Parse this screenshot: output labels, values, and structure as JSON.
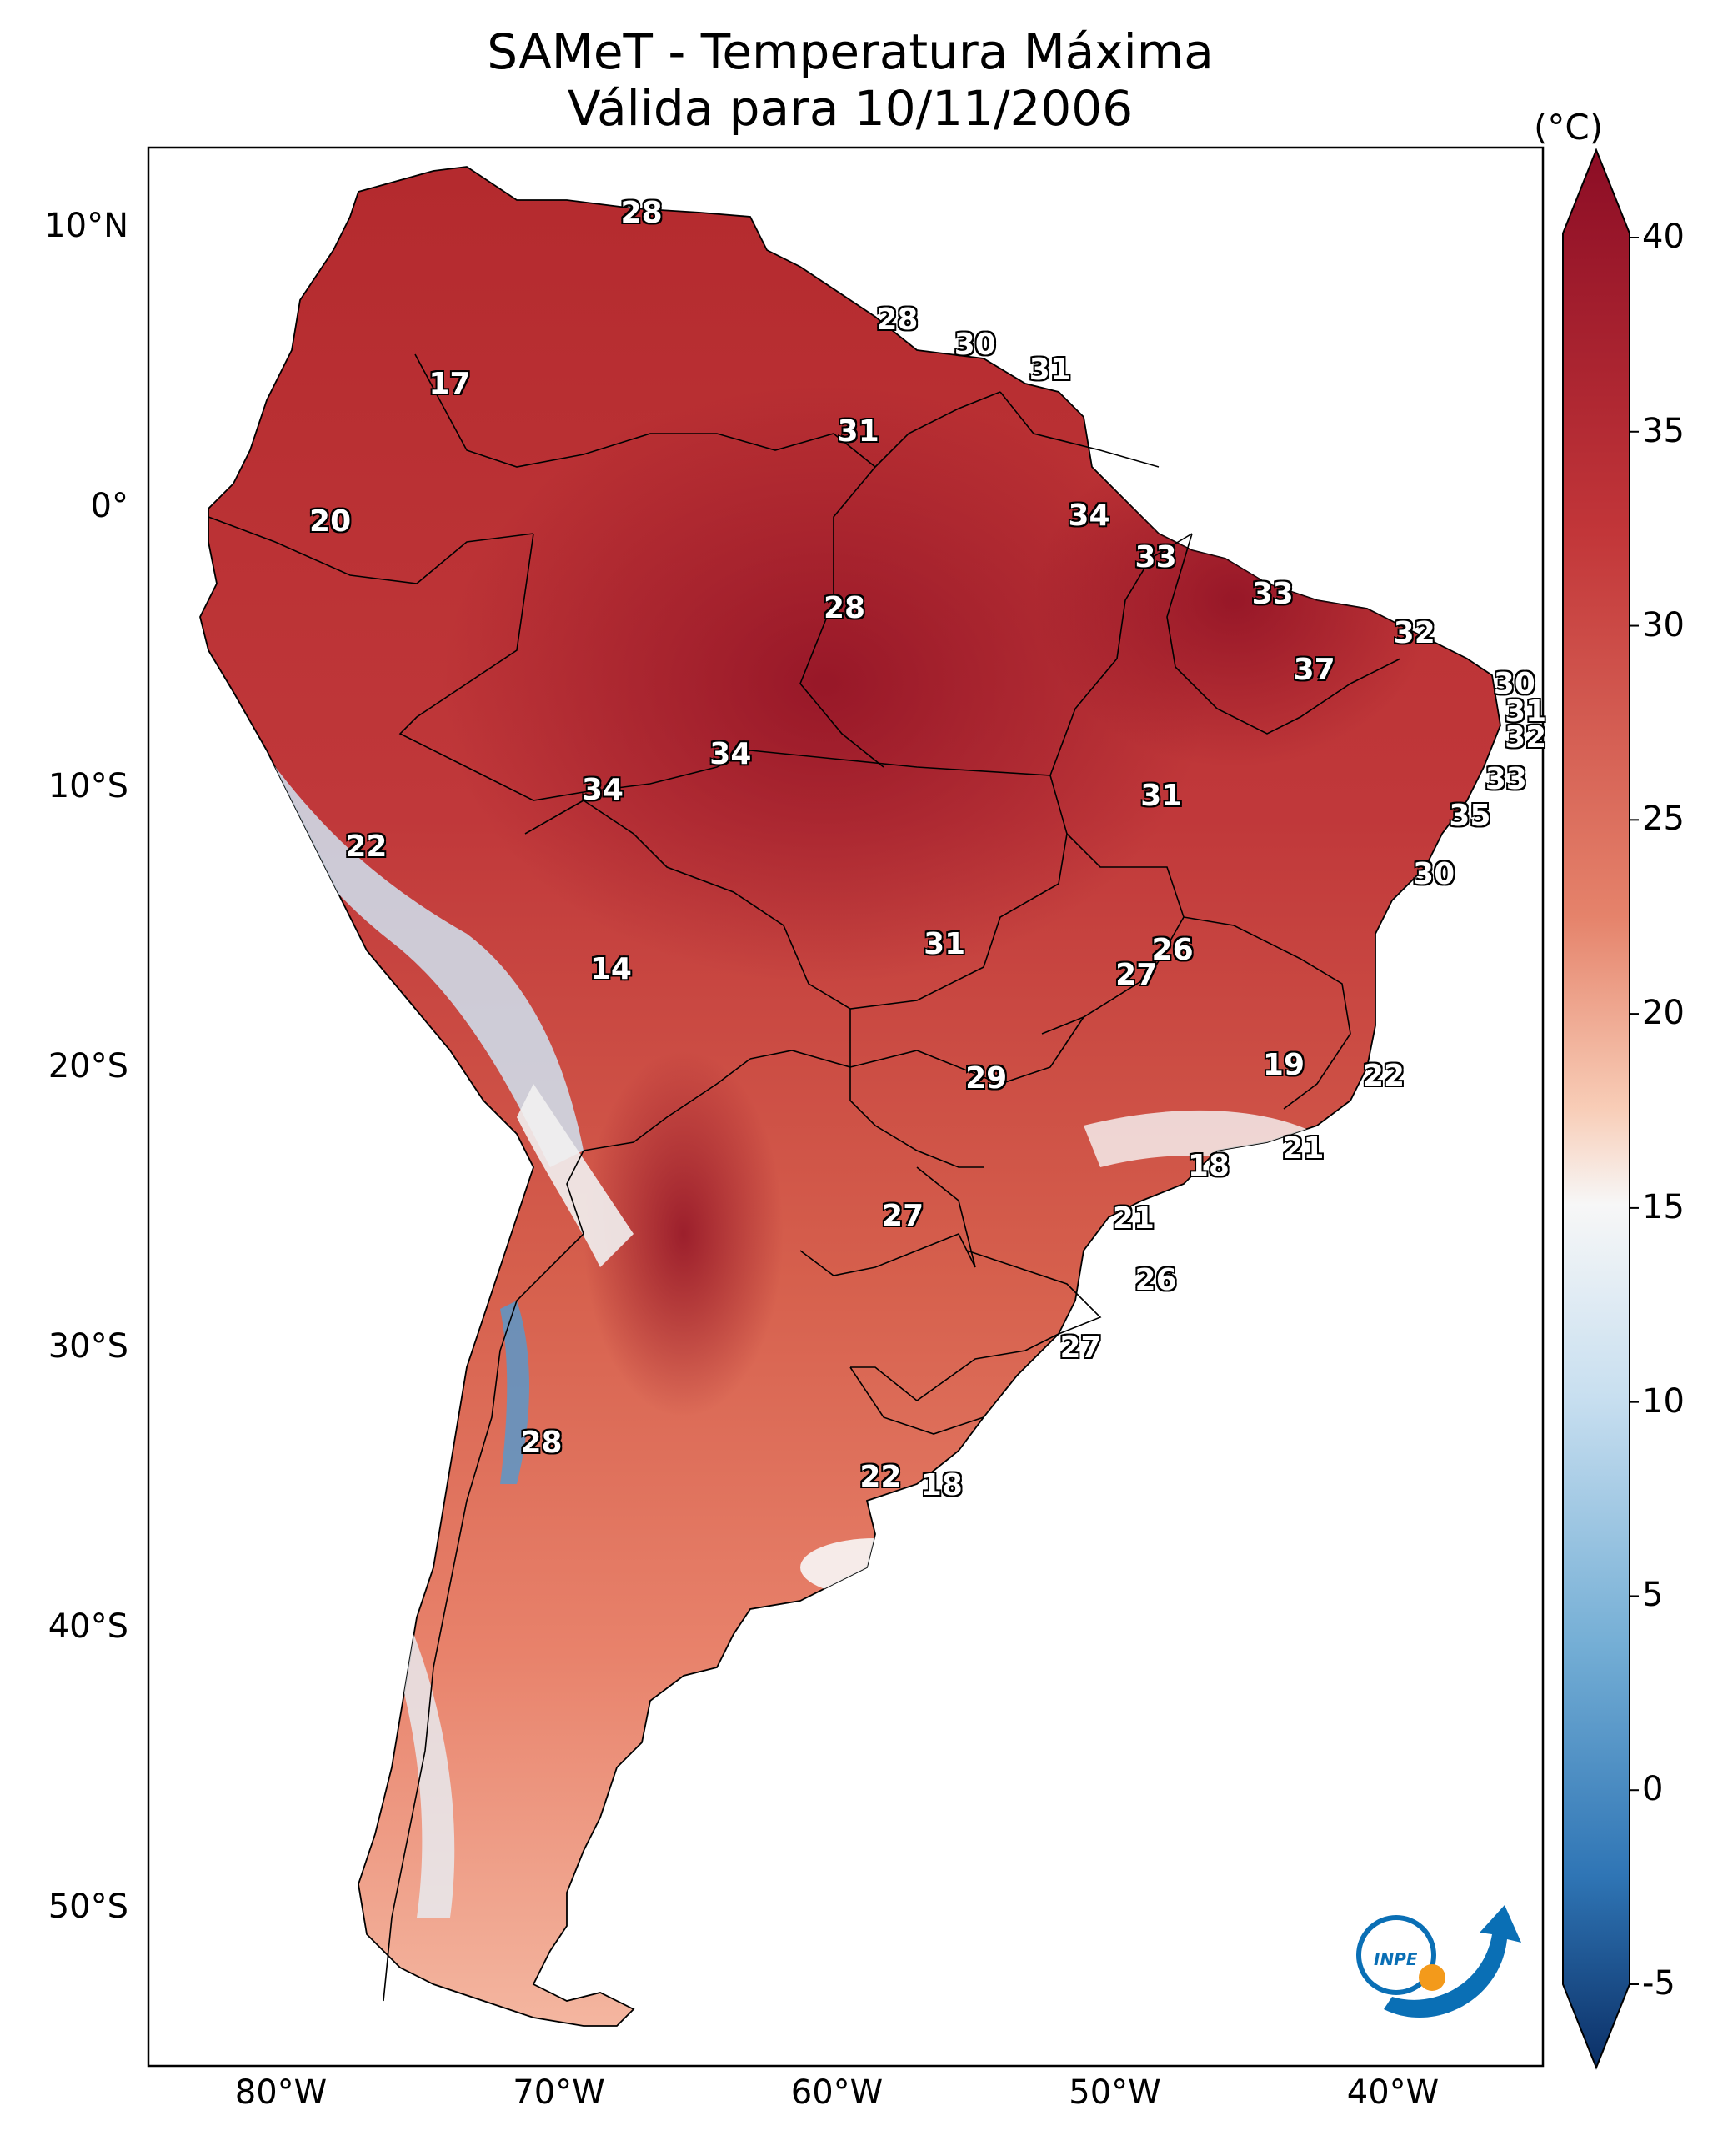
{
  "title_line1": "SAMeT - Temperatura Máxima",
  "title_line2": "Válida para 10/11/2006",
  "colorbar": {
    "unit": "(°C)",
    "min": -5,
    "max": 40,
    "ticks": [
      "40",
      "35",
      "30",
      "25",
      "20",
      "15",
      "10",
      "5",
      "0",
      "-5"
    ]
  },
  "axes": {
    "lat_ticks": [
      "10°N",
      "0°",
      "10°S",
      "20°S",
      "30°S",
      "40°S",
      "50°S"
    ],
    "lon_ticks": [
      "80°W",
      "70°W",
      "60°W",
      "50°W",
      "40°W"
    ]
  },
  "logo": {
    "text": "INPE",
    "colors": {
      "blue": "#0a6fb5",
      "orange": "#f39a1b"
    }
  },
  "colors": {
    "hot": "#b2182b",
    "warm": "#e8826b",
    "mild": "#f9d9c8",
    "neutral": "#f7f7f7",
    "cool": "#9ecae1",
    "cold": "#2166ac"
  },
  "station_labels": [
    {
      "id": "a1",
      "text": "28",
      "lon": -67,
      "lat": 10.5
    },
    {
      "id": "a2",
      "text": "28",
      "lon": -57.8,
      "lat": 6.7
    },
    {
      "id": "a3",
      "text": "30",
      "lon": -55,
      "lat": 5.8
    },
    {
      "id": "a4",
      "text": "31",
      "lon": -52.3,
      "lat": 4.9
    },
    {
      "id": "a5",
      "text": "17",
      "lon": -73.9,
      "lat": 4.4
    },
    {
      "id": "a6",
      "text": "31",
      "lon": -59.2,
      "lat": 2.7
    },
    {
      "id": "a7",
      "text": "34",
      "lon": -50.9,
      "lat": -0.3
    },
    {
      "id": "a8",
      "text": "20",
      "lon": -78.2,
      "lat": -0.5
    },
    {
      "id": "a9",
      "text": "33",
      "lon": -48.5,
      "lat": -1.8
    },
    {
      "id": "a10",
      "text": "33",
      "lon": -44.3,
      "lat": -3.1
    },
    {
      "id": "a11",
      "text": "28",
      "lon": -59.7,
      "lat": -3.6
    },
    {
      "id": "a12",
      "text": "32",
      "lon": -39.2,
      "lat": -4.5
    },
    {
      "id": "a13",
      "text": "37",
      "lon": -42.8,
      "lat": -5.8
    },
    {
      "id": "a14",
      "text": "30",
      "lon": -35.6,
      "lat": -6.3
    },
    {
      "id": "a15",
      "text": "31",
      "lon": -35.2,
      "lat": -7.3
    },
    {
      "id": "a16",
      "text": "32",
      "lon": -35.2,
      "lat": -8.2
    },
    {
      "id": "a17",
      "text": "34",
      "lon": -63.8,
      "lat": -8.8
    },
    {
      "id": "a18",
      "text": "33",
      "lon": -35.9,
      "lat": -9.7
    },
    {
      "id": "a19",
      "text": "34",
      "lon": -68.4,
      "lat": -10.1
    },
    {
      "id": "a20",
      "text": "31",
      "lon": -48.3,
      "lat": -10.3
    },
    {
      "id": "a21",
      "text": "35",
      "lon": -37.2,
      "lat": -11
    },
    {
      "id": "a22",
      "text": "22",
      "lon": -76.9,
      "lat": -12.1
    },
    {
      "id": "a23",
      "text": "30",
      "lon": -38.5,
      "lat": -13.1
    },
    {
      "id": "a24",
      "text": "26",
      "lon": -47.9,
      "lat": -15.8
    },
    {
      "id": "a25",
      "text": "31",
      "lon": -56.1,
      "lat": -15.6
    },
    {
      "id": "a26",
      "text": "27",
      "lon": -49.2,
      "lat": -16.7
    },
    {
      "id": "a27",
      "text": "14",
      "lon": -68.1,
      "lat": -16.5
    },
    {
      "id": "a28",
      "text": "19",
      "lon": -43.9,
      "lat": -19.9
    },
    {
      "id": "a29",
      "text": "22",
      "lon": -40.3,
      "lat": -20.3
    },
    {
      "id": "a30",
      "text": "29",
      "lon": -54.6,
      "lat": -20.4
    },
    {
      "id": "a31",
      "text": "21",
      "lon": -43.2,
      "lat": -22.9
    },
    {
      "id": "a32",
      "text": "18",
      "lon": -46.6,
      "lat": -23.5
    },
    {
      "id": "a33",
      "text": "27",
      "lon": -57.6,
      "lat": -25.3
    },
    {
      "id": "a34",
      "text": "21",
      "lon": -49.3,
      "lat": -25.4
    },
    {
      "id": "a35",
      "text": "26",
      "lon": -48.5,
      "lat": -27.6
    },
    {
      "id": "a36",
      "text": "27",
      "lon": -51.2,
      "lat": -30
    },
    {
      "id": "a37",
      "text": "28",
      "lon": -70.6,
      "lat": -33.4
    },
    {
      "id": "a38",
      "text": "22",
      "lon": -58.4,
      "lat": -34.6
    },
    {
      "id": "a39",
      "text": "18",
      "lon": -56.2,
      "lat": -34.9
    }
  ]
}
